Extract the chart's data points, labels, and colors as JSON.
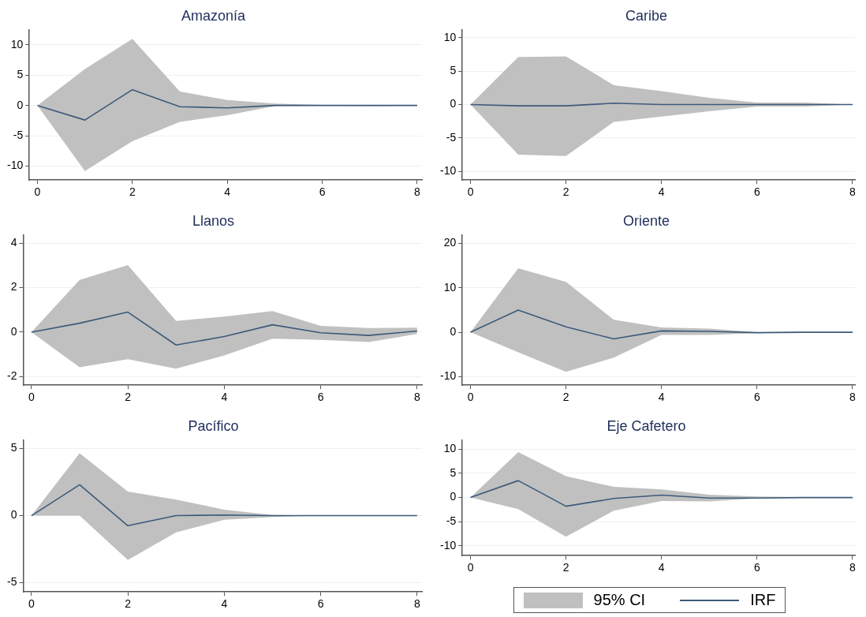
{
  "chart_data": [
    {
      "type": "line",
      "title": "Amazonía",
      "x": [
        0,
        1,
        2,
        3,
        4,
        5,
        6,
        7,
        8
      ],
      "xlim": [
        -0.17,
        8.1
      ],
      "xticks": [
        0,
        2,
        4,
        6,
        8
      ],
      "ylim": [
        -12.3,
        12.5
      ],
      "yticks": [
        -10,
        -5,
        0,
        5,
        10
      ],
      "grid": "y",
      "legend": false,
      "marker": "none",
      "series": [
        {
          "color": "#3d5a7a",
          "values": [
            0,
            -2.4,
            2.6,
            -0.2,
            -0.4,
            0,
            0,
            0,
            0
          ],
          "lower": [
            0,
            -10.8,
            -5.9,
            -2.7,
            -1.6,
            -0.1,
            0,
            -0.1,
            0
          ],
          "upper": [
            0,
            6,
            11,
            2.3,
            0.9,
            0.3,
            0.1,
            0,
            0
          ]
        }
      ]
    },
    {
      "type": "line",
      "title": "Caribe",
      "x": [
        0,
        1,
        2,
        3,
        4,
        5,
        6,
        7,
        8
      ],
      "xlim": [
        -0.17,
        8.05
      ],
      "xticks": [
        0,
        2,
        4,
        6,
        8
      ],
      "ylim": [
        -11.3,
        11.2
      ],
      "yticks": [
        -10,
        -5,
        0,
        5,
        10
      ],
      "grid": "y",
      "legend": false,
      "marker": "none",
      "series": [
        {
          "color": "#3d5a7a",
          "values": [
            0,
            -0.2,
            -0.2,
            0.2,
            0,
            0,
            0,
            0,
            0
          ],
          "lower": [
            0,
            -7.5,
            -7.7,
            -2.6,
            -1.8,
            -1,
            -0.3,
            -0.3,
            0
          ],
          "upper": [
            0,
            7.1,
            7.2,
            2.9,
            2,
            1,
            0.3,
            0.3,
            0
          ]
        }
      ]
    },
    {
      "type": "line",
      "title": "Llanos",
      "x": [
        0,
        1,
        2,
        3,
        4,
        5,
        6,
        7,
        8
      ],
      "xlim": [
        -0.17,
        8.1
      ],
      "xticks": [
        0,
        2,
        4,
        6,
        8
      ],
      "ylim": [
        -2.39,
        4.38
      ],
      "yticks": [
        -2,
        0,
        2,
        4
      ],
      "grid": "y",
      "legend": false,
      "marker": "none",
      "series": [
        {
          "color": "#3d5a7a",
          "values": [
            0,
            0.4,
            0.9,
            -0.58,
            -0.2,
            0.33,
            -0.03,
            -0.15,
            0.05
          ],
          "lower": [
            0,
            -1.58,
            -1.22,
            -1.65,
            -1.05,
            -0.3,
            -0.35,
            -0.45,
            -0.08
          ],
          "upper": [
            0,
            2.35,
            3.02,
            0.5,
            0.7,
            0.95,
            0.28,
            0.18,
            0.2
          ]
        }
      ]
    },
    {
      "type": "line",
      "title": "Oriente",
      "x": [
        0,
        1,
        2,
        3,
        4,
        5,
        6,
        7,
        8
      ],
      "xlim": [
        -0.17,
        8.05
      ],
      "xticks": [
        0,
        2,
        4,
        6,
        8
      ],
      "ylim": [
        -11.9,
        21.9
      ],
      "yticks": [
        -10,
        0,
        10,
        20
      ],
      "grid": "y",
      "legend": false,
      "marker": "none",
      "series": [
        {
          "color": "#3d5a7a",
          "values": [
            0,
            5,
            1.2,
            -1.5,
            0.3,
            0.2,
            -0.1,
            0,
            0
          ],
          "lower": [
            0,
            -4.5,
            -8.9,
            -5.7,
            -0.6,
            -0.6,
            -0.2,
            0,
            0
          ],
          "upper": [
            0,
            14.4,
            11.3,
            2.8,
            1.1,
            0.8,
            0,
            0.1,
            0
          ]
        }
      ]
    },
    {
      "type": "line",
      "title": "Pacífico",
      "x": [
        0,
        1,
        2,
        3,
        4,
        5,
        6,
        7,
        8
      ],
      "xlim": [
        -0.17,
        8.1
      ],
      "xticks": [
        0,
        2,
        4,
        6,
        8
      ],
      "ylim": [
        -5.68,
        5.64
      ],
      "yticks": [
        -5,
        0,
        5
      ],
      "grid": "y",
      "legend": false,
      "marker": "none",
      "series": [
        {
          "color": "#3d5a7a",
          "values": [
            0,
            2.3,
            -0.75,
            0,
            0.05,
            0,
            0,
            0,
            0
          ],
          "lower": [
            0,
            0,
            -3.3,
            -1.25,
            -0.3,
            -0.1,
            0,
            0,
            0
          ],
          "upper": [
            0,
            4.65,
            1.8,
            1.2,
            0.45,
            0.05,
            0,
            0,
            0
          ]
        }
      ]
    },
    {
      "type": "line",
      "title": "Eje Cafetero",
      "x": [
        0,
        1,
        2,
        3,
        4,
        5,
        6,
        7,
        8
      ],
      "xlim": [
        -0.17,
        8.05
      ],
      "xticks": [
        0,
        2,
        4,
        6,
        8
      ],
      "ylim": [
        -12,
        11.9
      ],
      "yticks": [
        -10,
        -5,
        0,
        5,
        10
      ],
      "grid": "y",
      "legend": "bottom",
      "marker": "none",
      "annotations": [
        "95% CI"
      ],
      "series": [
        {
          "name": "IRF",
          "color": "#3d5a7a",
          "values": [
            0,
            3.5,
            -1.8,
            -0.2,
            0.5,
            -0.1,
            -0.1,
            0,
            0
          ],
          "lower": [
            0,
            -2.4,
            -8.1,
            -2.7,
            -0.7,
            -0.8,
            -0.2,
            0,
            0
          ],
          "upper": [
            0,
            9.4,
            4.4,
            2.2,
            1.7,
            0.6,
            0.2,
            0.1,
            0
          ]
        }
      ]
    }
  ]
}
